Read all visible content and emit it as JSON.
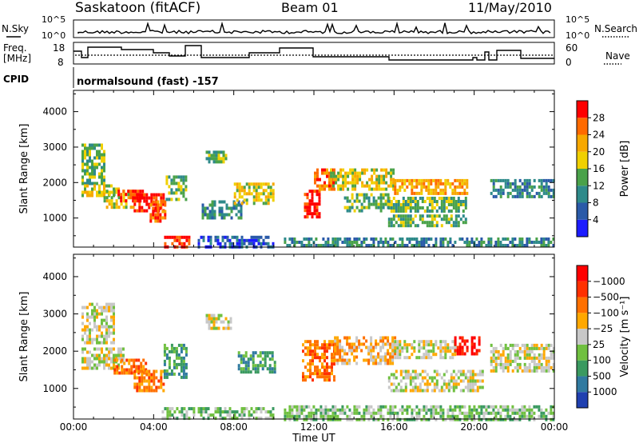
{
  "header": {
    "station": "Saskatoon (fitACF)",
    "beam": "Beam 01",
    "date": "11/May/2010"
  },
  "top_panels": {
    "nsky_label": "N.Sky",
    "nsearch_label": "N.Search",
    "nsky_ticks": [
      "10^5",
      "10^0"
    ],
    "nsearch_ticks": [
      "10^5",
      "10^0"
    ],
    "freq_label_1": "Freq.",
    "freq_label_2": "[MHz]",
    "freq_ticks": [
      "18",
      "8"
    ],
    "nave_label": "Nave",
    "nave_ticks": [
      "60",
      "0"
    ],
    "cpid_label": "CPID",
    "cpid_text": "normalsound (fast) -157"
  },
  "chart_data": [
    {
      "type": "heatmap",
      "name": "power",
      "xlabel": "",
      "ylabel": "Slant Range [km]",
      "x_ticks": [
        "00:00",
        "04:00",
        "08:00",
        "12:00",
        "16:00",
        "20:00",
        "00:00"
      ],
      "y_ticks": [
        "1000",
        "2000",
        "3000",
        "4000"
      ],
      "ylim": [
        180,
        4600
      ],
      "xlim_hours": [
        0,
        24
      ],
      "colorbar": {
        "label": "Power [dB]",
        "ticks": [
          "4",
          "8",
          "12",
          "16",
          "20",
          "24",
          "28"
        ],
        "colors": [
          "#1c1cff",
          "#2a5aa8",
          "#2e8a8a",
          "#4aa24a",
          "#f0d000",
          "#f7a800",
          "#ff6a00",
          "#ff0000"
        ]
      },
      "blobs": [
        {
          "t0": 0.4,
          "t1": 1.5,
          "r0": 2000,
          "r1": 3100,
          "level": 3
        },
        {
          "t0": 0.4,
          "t1": 2.2,
          "r0": 1600,
          "r1": 1950,
          "level": 4
        },
        {
          "t0": 1.5,
          "t1": 3.0,
          "r0": 1300,
          "r1": 1800,
          "level": 4
        },
        {
          "t0": 2.2,
          "t1": 3.5,
          "r0": 1500,
          "r1": 1800,
          "level": 7
        },
        {
          "t0": 3.0,
          "t1": 4.5,
          "r0": 1200,
          "r1": 1700,
          "level": 7
        },
        {
          "t0": 3.8,
          "t1": 4.6,
          "r0": 900,
          "r1": 1500,
          "level": 6
        },
        {
          "t0": 4.4,
          "t1": 5.8,
          "r0": 200,
          "r1": 500,
          "level": 7
        },
        {
          "t0": 4.6,
          "t1": 5.6,
          "r0": 1500,
          "r1": 2200,
          "level": 3
        },
        {
          "t0": 6.6,
          "t1": 7.6,
          "r0": 2600,
          "r1": 2900,
          "level": 3
        },
        {
          "t0": 6.4,
          "t1": 8.5,
          "r0": 1000,
          "r1": 1500,
          "level": 2
        },
        {
          "t0": 8.0,
          "t1": 10.0,
          "r0": 1400,
          "r1": 2000,
          "level": 4
        },
        {
          "t0": 11.5,
          "t1": 12.3,
          "r0": 1000,
          "r1": 1800,
          "level": 7
        },
        {
          "t0": 12.0,
          "t1": 13.0,
          "r0": 1800,
          "r1": 2400,
          "level": 6
        },
        {
          "t0": 12.8,
          "t1": 16.0,
          "r0": 1800,
          "r1": 2400,
          "level": 4
        },
        {
          "t0": 16.0,
          "t1": 19.6,
          "r0": 1700,
          "r1": 2100,
          "level": 5
        },
        {
          "t0": 15.7,
          "t1": 19.6,
          "r0": 1200,
          "r1": 1600,
          "level": 3
        },
        {
          "t0": 15.7,
          "t1": 19.6,
          "r0": 800,
          "r1": 1100,
          "level": 3
        },
        {
          "t0": 13.5,
          "t1": 15.7,
          "r0": 1200,
          "r1": 1700,
          "level": 3
        },
        {
          "t0": 20.8,
          "t1": 24.0,
          "r0": 1600,
          "r1": 2100,
          "level": 2
        },
        {
          "t0": 10.5,
          "t1": 24.0,
          "r0": 200,
          "r1": 450,
          "level": 2
        },
        {
          "t0": 6.2,
          "t1": 10.0,
          "r0": 200,
          "r1": 500,
          "level": 1
        }
      ]
    },
    {
      "type": "heatmap",
      "name": "velocity",
      "xlabel": "Time UT",
      "ylabel": "Slant Range [km]",
      "x_ticks": [
        "00:00",
        "04:00",
        "08:00",
        "12:00",
        "16:00",
        "20:00",
        "00:00"
      ],
      "y_ticks": [
        "1000",
        "2000",
        "3000",
        "4000"
      ],
      "ylim": [
        180,
        4600
      ],
      "xlim_hours": [
        0,
        24
      ],
      "colorbar": {
        "label": "Velocity [m s⁻¹]",
        "ticks": [
          "1000",
          "500",
          "100",
          "25",
          "−25",
          "−100",
          "−500",
          "−1000"
        ],
        "colors": [
          "#2040b0",
          "#307aa0",
          "#3a9a60",
          "#70c040",
          "#c8c8c8",
          "#ffa800",
          "#ff7000",
          "#ff3000",
          "#ff0000"
        ]
      },
      "blobs": [
        {
          "t0": 0.4,
          "t1": 2.0,
          "r0": 2200,
          "r1": 3300,
          "level": 4
        },
        {
          "t0": 0.4,
          "t1": 2.5,
          "r0": 1500,
          "r1": 2100,
          "level": 4
        },
        {
          "t0": 2.0,
          "t1": 3.6,
          "r0": 1400,
          "r1": 1800,
          "level": 6
        },
        {
          "t0": 3.0,
          "t1": 4.5,
          "r0": 900,
          "r1": 1500,
          "level": 6
        },
        {
          "t0": 4.5,
          "t1": 5.6,
          "r0": 1300,
          "r1": 2200,
          "level": 2
        },
        {
          "t0": 6.6,
          "t1": 7.8,
          "r0": 2600,
          "r1": 3000,
          "level": 4
        },
        {
          "t0": 8.2,
          "t1": 10.0,
          "r0": 1400,
          "r1": 2000,
          "level": 2
        },
        {
          "t0": 11.4,
          "t1": 13.0,
          "r0": 1200,
          "r1": 2300,
          "level": 6
        },
        {
          "t0": 13.0,
          "t1": 16.0,
          "r0": 1700,
          "r1": 2400,
          "level": 5
        },
        {
          "t0": 16.0,
          "t1": 19.0,
          "r0": 1800,
          "r1": 2300,
          "level": 4
        },
        {
          "t0": 19.0,
          "t1": 20.2,
          "r0": 1900,
          "r1": 2400,
          "level": 8
        },
        {
          "t0": 15.7,
          "t1": 20.4,
          "r0": 900,
          "r1": 1500,
          "level": 4
        },
        {
          "t0": 20.8,
          "t1": 24.0,
          "r0": 1500,
          "r1": 2200,
          "level": 4
        },
        {
          "t0": 10.5,
          "t1": 24.0,
          "r0": 200,
          "r1": 550,
          "level": 3
        },
        {
          "t0": 4.4,
          "t1": 6.0,
          "r0": 200,
          "r1": 500,
          "level": 3
        },
        {
          "t0": 6.2,
          "t1": 10.0,
          "r0": 200,
          "r1": 500,
          "level": 3
        }
      ]
    }
  ]
}
